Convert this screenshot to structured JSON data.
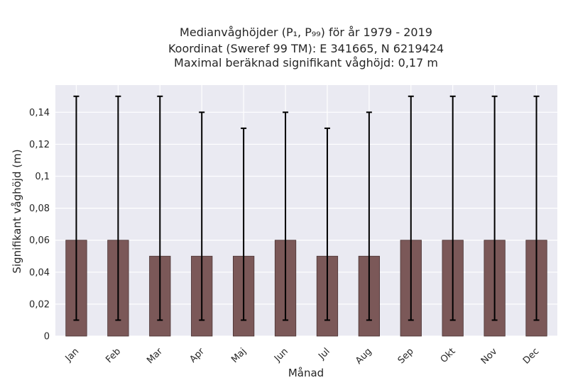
{
  "chart_data": {
    "type": "bar",
    "title_lines": [
      "Medianvåghöjder (P₁, P₉₉) för år 1979 - 2019",
      "Koordinat (Sweref 99 TM): E 341665, N 6219424",
      "Maximal beräknad signifikant våghöjd: 0,17 m"
    ],
    "xlabel": "Månad",
    "ylabel": "Signifikant våghöjd (m)",
    "categories": [
      "Jan",
      "Feb",
      "Mar",
      "Apr",
      "Maj",
      "Jun",
      "Jul",
      "Aug",
      "Sep",
      "Okt",
      "Nov",
      "Dec"
    ],
    "values": [
      0.06,
      0.06,
      0.05,
      0.05,
      0.05,
      0.06,
      0.05,
      0.05,
      0.06,
      0.06,
      0.06,
      0.06
    ],
    "err_low": [
      0.01,
      0.01,
      0.01,
      0.01,
      0.01,
      0.01,
      0.01,
      0.01,
      0.01,
      0.01,
      0.01,
      0.01
    ],
    "err_high": [
      0.15,
      0.15,
      0.15,
      0.14,
      0.13,
      0.14,
      0.13,
      0.14,
      0.15,
      0.15,
      0.15,
      0.15
    ],
    "ylim": [
      0,
      0.157
    ],
    "yticks": [
      0,
      0.02,
      0.04,
      0.06,
      0.08,
      0.1,
      0.12,
      0.14
    ],
    "ytick_labels": [
      "0",
      "0,02",
      "0,04",
      "0,06",
      "0,08",
      "0,1",
      "0,12",
      "0,14"
    ],
    "grid": true,
    "colors": {
      "bar": "#7b5858",
      "bar_edge": "#4a3333",
      "errorbar": "#000000",
      "plot_bg": "#eaeaf2",
      "grid": "#ffffff"
    }
  }
}
